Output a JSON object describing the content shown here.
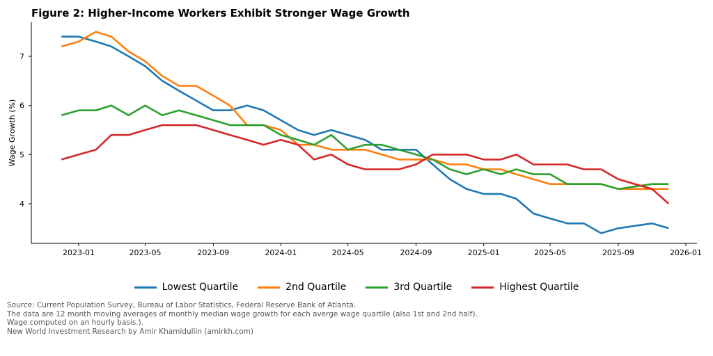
{
  "chart_data": {
    "type": "line",
    "title": "Figure 2: Higher-Income Workers Exhibit Stronger Wage Growth",
    "xlabel": "",
    "ylabel": "Wage Growth (%)",
    "x_start": "2022-12",
    "x_end": "2025-12",
    "x_frequency": "monthly",
    "xticks": [
      "2023-01",
      "2023-05",
      "2023-09",
      "2024-01",
      "2024-05",
      "2024-09",
      "2025-01",
      "2025-05",
      "2025-09",
      "2026-01"
    ],
    "yticks": [
      4,
      5,
      6,
      7
    ],
    "ylim": [
      3.2,
      7.7
    ],
    "grid": false,
    "legend_position": "bottom",
    "series": [
      {
        "name": "Lowest Quartile",
        "color": "#1f77b4",
        "values": [
          7.4,
          7.4,
          7.3,
          7.2,
          7.0,
          6.8,
          6.5,
          6.3,
          6.1,
          5.9,
          5.9,
          6.0,
          5.9,
          5.7,
          5.5,
          5.4,
          5.5,
          5.4,
          5.3,
          5.1,
          5.1,
          5.1,
          4.8,
          4.5,
          4.3,
          4.2,
          4.2,
          4.1,
          3.8,
          3.7,
          3.6,
          3.6,
          3.4,
          3.5,
          3.55,
          3.6,
          3.5
        ]
      },
      {
        "name": "2nd Quartile",
        "color": "#ff7f0e",
        "values": [
          7.2,
          7.3,
          7.5,
          7.4,
          7.1,
          6.9,
          6.6,
          6.4,
          6.4,
          6.2,
          6.0,
          5.6,
          5.6,
          5.5,
          5.2,
          5.2,
          5.1,
          5.1,
          5.1,
          5.0,
          4.9,
          4.9,
          4.9,
          4.8,
          4.8,
          4.7,
          4.7,
          4.6,
          4.5,
          4.4,
          4.4,
          4.4,
          4.4,
          4.3,
          4.3,
          4.3,
          4.3
        ]
      },
      {
        "name": "3rd Quartile",
        "color": "#2ca02c",
        "values": [
          5.8,
          5.9,
          5.9,
          6.0,
          5.8,
          6.0,
          5.8,
          5.9,
          5.8,
          5.7,
          5.6,
          5.6,
          5.6,
          5.4,
          5.3,
          5.2,
          5.4,
          5.1,
          5.2,
          5.2,
          5.1,
          5.0,
          4.9,
          4.7,
          4.6,
          4.7,
          4.6,
          4.7,
          4.6,
          4.6,
          4.4,
          4.4,
          4.4,
          4.3,
          4.35,
          4.4,
          4.4
        ]
      },
      {
        "name": "Highest Quartile",
        "color": "#d62728",
        "values": [
          4.9,
          5.0,
          5.1,
          5.4,
          5.4,
          5.5,
          5.6,
          5.6,
          5.6,
          5.5,
          5.4,
          5.3,
          5.2,
          5.3,
          5.2,
          4.9,
          5.0,
          4.8,
          4.7,
          4.7,
          4.7,
          4.8,
          5.0,
          5.0,
          5.0,
          4.9,
          4.9,
          5.0,
          4.8,
          4.8,
          4.8,
          4.7,
          4.7,
          4.5,
          4.4,
          4.3,
          4.0
        ]
      }
    ]
  },
  "footer": [
    "Source: Current Population Survey, Bureau of Labor Statistics, Federal Reserve Bank of Atlanta.",
    "The data are 12 month moving averages of monthly median wage growth for each averge wage quartile (also 1st and 2nd half).",
    "Wage computed on an hourly basis.).",
    "New World Investment Research by Amir Khamidullin (amirkh.com)"
  ]
}
